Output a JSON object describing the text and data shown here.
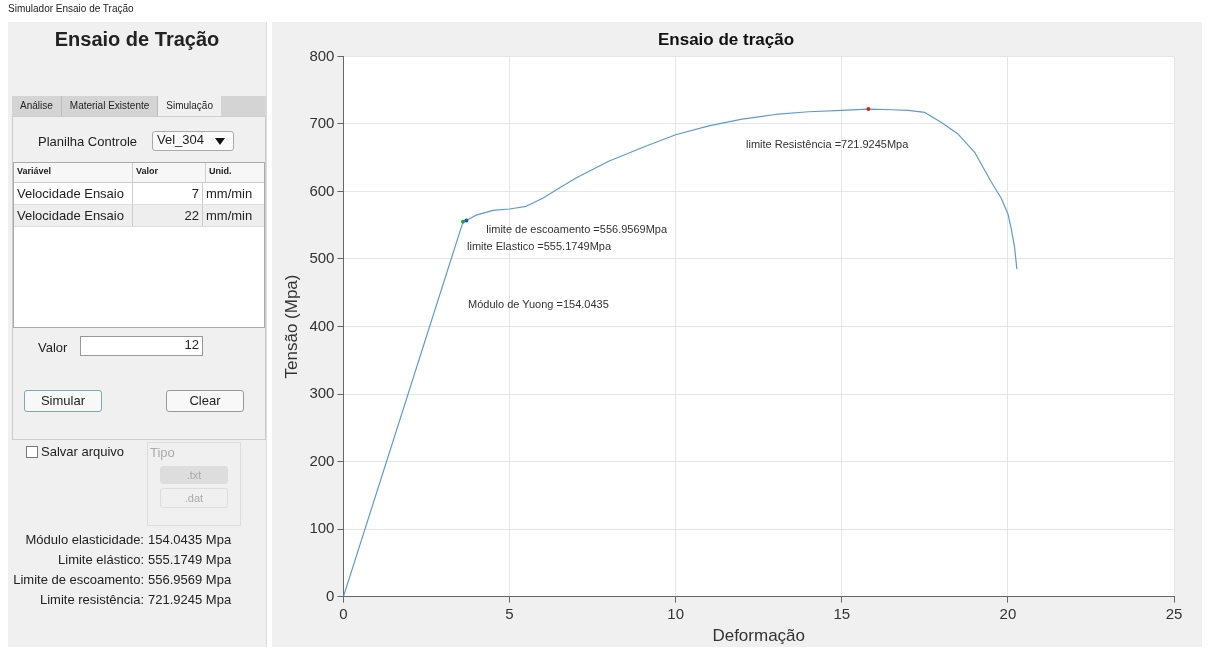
{
  "chart_data": [
    {
      "type": "other",
      "title": "Ensaio de Tração",
      "subtitle": "Simulador Ensaio de Tração",
      "annotations": [
        "Análise",
        "Material Existente",
        "Simulação",
        "Planilha Controle",
        "Vel_304",
        "Variável",
        "Valor",
        "Unid.",
        "Velocidade Ensaio",
        "7",
        "mm/min",
        "Velocidade Ensaio",
        "22",
        "mm/min",
        "Valor",
        "12",
        "Simular",
        "Clear",
        "Salvar arquivo",
        "Tipo",
        ".txt",
        ".dat",
        "Módulo elasticidade:",
        "154.0435 Mpa",
        "Limite elástico:",
        "555.1749 Mpa",
        "Limite de escoamento:",
        "556.9569 Mpa",
        "Limite resistência:",
        "721.9245 Mpa"
      ]
    },
    {
      "type": "line",
      "title": "Ensaio de tração",
      "xlabel": "Deformação",
      "ylabel": "Tensão (Mpa)",
      "series": [
        {
          "color": "#5b9bd5",
          "x": [
            0,
            3.6,
            3.7,
            4,
            4.5,
            5,
            5.5,
            6,
            6.5,
            7,
            8,
            9,
            10,
            11,
            12,
            13,
            14,
            15,
            15.8,
            16.5,
            17,
            17.5,
            18,
            18.5,
            19,
            19.5,
            19.8,
            20,
            20.1,
            20.2,
            20.27
          ],
          "values": [
            0,
            555,
            557,
            565,
            572,
            574,
            578,
            590,
            605,
            620,
            645,
            665,
            684,
            697,
            707,
            714,
            718,
            720,
            722,
            721,
            720,
            717,
            702,
            685,
            658,
            614,
            590,
            567,
            545,
            518,
            485
          ]
        }
      ],
      "xlim": [
        0,
        25
      ],
      "xticks": [
        0,
        5,
        10,
        15,
        20,
        25
      ],
      "ylim": [
        0,
        800
      ],
      "yticks": [
        0,
        100,
        200,
        300,
        400,
        500,
        600,
        700,
        800
      ],
      "grid": true,
      "legend": false,
      "marker": "none",
      "line_style": "solid",
      "annotations": [
        {
          "text": "limite de escoamento =556.9569Mpa",
          "x": 3.7,
          "y": 556.9569
        },
        {
          "text": "limite Elastico =555.1749Mpa",
          "x": 3.6,
          "y": 555.1749
        },
        "Módulo de Yuong =154.0435",
        {
          "text": "limite Resistência =721.9245Mpa",
          "x": 15.8,
          "y": 721.9245
        }
      ]
    }
  ]
}
